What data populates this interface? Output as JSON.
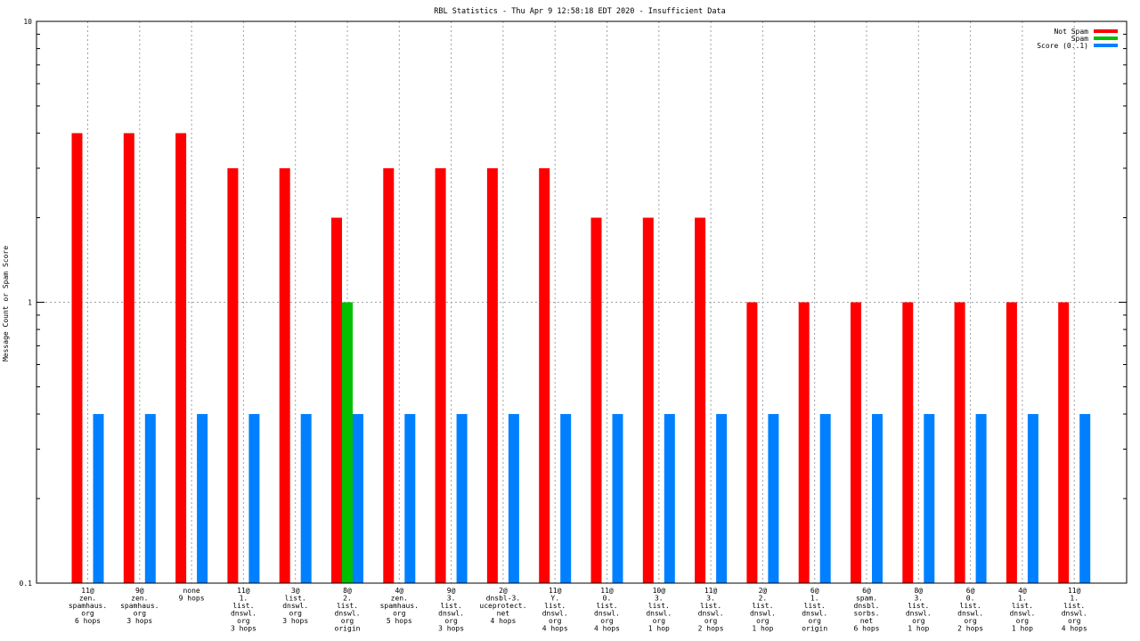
{
  "chart_data": {
    "type": "bar",
    "title": "RBL Statistics - Thu Apr  9 12:58:18 EDT 2020 - Insufficient Data",
    "ylabel": "Message Count or Spam Score",
    "xlabel": "",
    "yscale": "log",
    "ylim": [
      0.1,
      10
    ],
    "yticks": [
      "0.1",
      "1",
      "10"
    ],
    "grid": true,
    "legend_position": "top-right",
    "categories": [
      [
        "11@",
        "zen.",
        "spamhaus.",
        "org",
        "6 hops"
      ],
      [
        "9@",
        "zen.",
        "spamhaus.",
        "org",
        "3 hops"
      ],
      [
        "none",
        "9 hops"
      ],
      [
        "11@",
        "1.",
        "list.",
        "dnswl.",
        "org",
        "3 hops"
      ],
      [
        "3@",
        "list.",
        "dnswl.",
        "org",
        "3 hops"
      ],
      [
        "8@",
        "2.",
        "list.",
        "dnswl.",
        "org",
        "origin"
      ],
      [
        "4@",
        "zen.",
        "spamhaus.",
        "org",
        "5 hops"
      ],
      [
        "9@",
        "3.",
        "list.",
        "dnswl.",
        "org",
        "3 hops"
      ],
      [
        "2@",
        "dnsbl-3.",
        "uceprotect.",
        "net",
        "4 hops"
      ],
      [
        "11@",
        "Y.",
        "list.",
        "dnswl.",
        "org",
        "4 hops"
      ],
      [
        "11@",
        "0.",
        "list.",
        "dnswl.",
        "org",
        "4 hops"
      ],
      [
        "10@",
        "3.",
        "list.",
        "dnswl.",
        "org",
        "1 hop"
      ],
      [
        "11@",
        "3.",
        "list.",
        "dnswl.",
        "org",
        "2 hops"
      ],
      [
        "2@",
        "2.",
        "list.",
        "dnswl.",
        "org",
        "1 hop"
      ],
      [
        "6@",
        "1.",
        "list.",
        "dnswl.",
        "org",
        "origin"
      ],
      [
        "6@",
        "spam.",
        "dnsbl.",
        "sorbs.",
        "net",
        "6 hops"
      ],
      [
        "8@",
        "3.",
        "list.",
        "dnswl.",
        "org",
        "1 hop"
      ],
      [
        "6@",
        "0.",
        "list.",
        "dnswl.",
        "org",
        "2 hops"
      ],
      [
        "4@",
        "1.",
        "list.",
        "dnswl.",
        "org",
        "1 hop"
      ],
      [
        "11@",
        "1.",
        "list.",
        "dnswl.",
        "org",
        "4 hops"
      ]
    ],
    "series": [
      {
        "name": "Not Spam",
        "color": "#ff0000",
        "values": [
          4,
          4,
          4,
          3,
          3,
          2,
          3,
          3,
          3,
          3,
          2,
          2,
          2,
          1,
          1,
          1,
          1,
          1,
          1,
          1
        ]
      },
      {
        "name": "Spam",
        "color": "#00c000",
        "values": [
          0,
          0,
          0,
          0,
          0,
          1,
          0,
          0,
          0,
          0,
          0,
          0,
          0,
          0,
          0,
          0,
          0,
          0,
          0,
          0
        ]
      },
      {
        "name": "Score (0..1)",
        "color": "#0080ff",
        "values": [
          0.4,
          0.4,
          0.4,
          0.4,
          0.4,
          0.4,
          0.4,
          0.4,
          0.4,
          0.4,
          0.4,
          0.4,
          0.4,
          0.4,
          0.4,
          0.4,
          0.4,
          0.4,
          0.4,
          0.4
        ]
      }
    ]
  }
}
